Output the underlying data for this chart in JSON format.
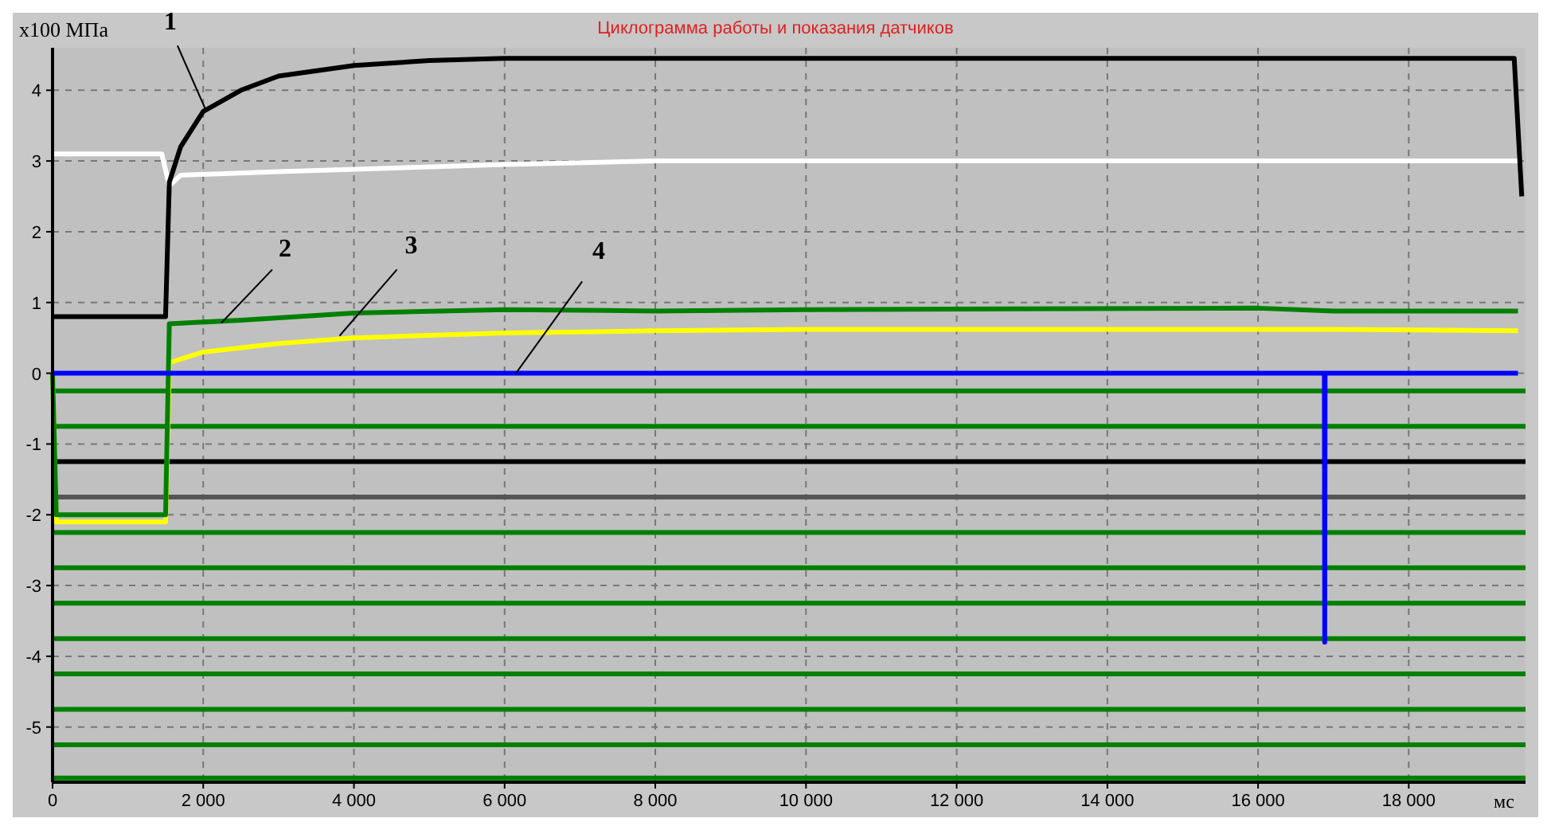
{
  "chart_data": {
    "type": "line",
    "title": "Циклограмма работы и показания датчиков",
    "ylabel": "x100 МПа",
    "xlabel": "мс",
    "xlim": [
      0,
      19550
    ],
    "ylim": [
      -5.78,
      4.6
    ],
    "xticks": [
      0,
      {
        "value": 2000,
        "label": "2 000"
      },
      {
        "value": 4000,
        "label": "4 000"
      },
      {
        "value": 6000,
        "label": "6 000"
      },
      {
        "value": 8000,
        "label": "8 000"
      },
      {
        "value": 10000,
        "label": "10 000"
      },
      {
        "value": 12000,
        "label": "12 000"
      },
      {
        "value": 14000,
        "label": "14 000"
      },
      {
        "value": 16000,
        "label": "16 000"
      },
      {
        "value": 18000,
        "label": "18 000"
      }
    ],
    "yticks": [
      -5,
      -4,
      -3,
      -2,
      -1,
      0,
      1,
      2,
      3,
      4
    ],
    "grid": true,
    "annotations": [
      {
        "text": "1",
        "x": 2030,
        "y": 3.73
      },
      {
        "text": "2",
        "x": 2240,
        "y": 0.71
      },
      {
        "text": "3",
        "x": 3810,
        "y": 0.53
      },
      {
        "text": "4",
        "x": 6150,
        "y": 0
      }
    ],
    "series": [
      {
        "color": "#008000",
        "x": [
          0,
          19550
        ],
        "values": [
          -0.25,
          -0.25
        ]
      },
      {
        "color": "#008000",
        "x": [
          0,
          19550
        ],
        "values": [
          -0.75,
          -0.75
        ]
      },
      {
        "color": "#000000",
        "x": [
          0,
          19550
        ],
        "values": [
          -1.25,
          -1.25
        ]
      },
      {
        "color": "#555555",
        "x": [
          0,
          19550
        ],
        "values": [
          -1.75,
          -1.75
        ]
      },
      {
        "color": "#008000",
        "x": [
          0,
          19550
        ],
        "values": [
          -2.25,
          -2.25
        ]
      },
      {
        "color": "#008000",
        "x": [
          0,
          19550
        ],
        "values": [
          -2.75,
          -2.75
        ]
      },
      {
        "color": "#008000",
        "x": [
          0,
          19550
        ],
        "values": [
          -3.25,
          -3.25
        ]
      },
      {
        "color": "#008000",
        "x": [
          0,
          19550
        ],
        "values": [
          -3.75,
          -3.75
        ]
      },
      {
        "color": "#008000",
        "x": [
          0,
          19550
        ],
        "values": [
          -4.25,
          -4.25
        ]
      },
      {
        "color": "#008000",
        "x": [
          0,
          19550
        ],
        "values": [
          -4.75,
          -4.75
        ]
      },
      {
        "color": "#008000",
        "x": [
          0,
          19550
        ],
        "values": [
          -5.25,
          -5.25
        ]
      },
      {
        "color": "#008000",
        "x": [
          0,
          19550
        ],
        "values": [
          -5.72,
          -5.72
        ]
      },
      {
        "color": "#ffffff",
        "x": [
          0,
          1450,
          1550,
          1700,
          3000,
          6000,
          8000,
          19450
        ],
        "values": [
          3.1,
          3.1,
          2.65,
          2.8,
          2.85,
          2.95,
          3.0,
          3.0
        ]
      },
      {
        "color": "#ffff00",
        "x": [
          0,
          50,
          1500,
          1550,
          2000,
          3000,
          4000,
          6000,
          8000,
          10000,
          17000,
          19450
        ],
        "values": [
          0,
          -2.1,
          -2.1,
          0.15,
          0.3,
          0.42,
          0.5,
          0.57,
          0.6,
          0.62,
          0.62,
          0.6
        ]
      },
      {
        "color": "#008000",
        "x": [
          0,
          50,
          1500,
          1550,
          2500,
          4000,
          6000,
          8000,
          10000,
          16000,
          17000,
          19450
        ],
        "values": [
          0,
          -2.0,
          -2.0,
          0.7,
          0.75,
          0.85,
          0.9,
          0.88,
          0.9,
          0.92,
          0.88,
          0.88
        ]
      },
      {
        "color": "#0000ff",
        "x": [
          0,
          16880,
          16885,
          16890,
          19450
        ],
        "values": [
          0,
          0,
          -3.8,
          0,
          0
        ]
      },
      {
        "color": "#000000",
        "x": [
          0,
          1500,
          1550,
          1700,
          2000,
          2500,
          3000,
          4000,
          5000,
          6000,
          19400,
          19500
        ],
        "values": [
          0.8,
          0.8,
          2.7,
          3.2,
          3.7,
          4.0,
          4.2,
          4.35,
          4.42,
          4.45,
          4.45,
          2.5
        ]
      }
    ]
  }
}
